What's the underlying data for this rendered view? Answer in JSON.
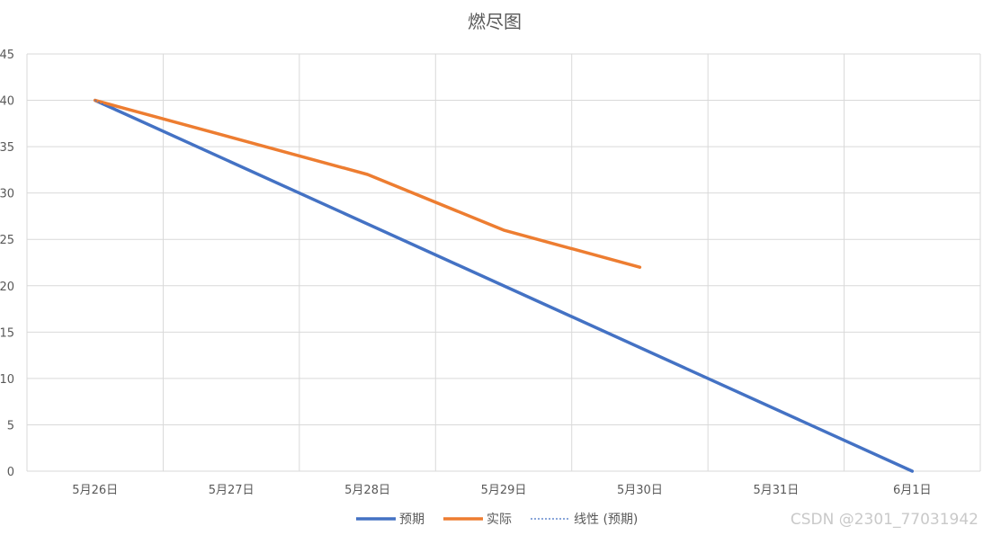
{
  "chart_data": {
    "type": "line",
    "title": "燃尽图",
    "categories": [
      "5月26日",
      "5月27日",
      "5月28日",
      "5月29日",
      "5月30日",
      "5月31日",
      "6月1日"
    ],
    "ylim": [
      0,
      45
    ],
    "yticks": [
      0,
      5,
      10,
      15,
      20,
      25,
      30,
      35,
      40,
      45
    ],
    "grid": true,
    "legend_position": "bottom",
    "series": [
      {
        "name": "预期",
        "values": [
          40,
          null,
          null,
          null,
          null,
          null,
          0
        ],
        "color": "#4472C4",
        "style": "solid"
      },
      {
        "name": "实际",
        "values": [
          40,
          null,
          32,
          26,
          22,
          null,
          null
        ],
        "color": "#ED7D31",
        "style": "solid"
      }
    ],
    "trendline": {
      "name": "线性 (预期)",
      "values": [
        40,
        null,
        null,
        null,
        null,
        null,
        0
      ],
      "color": "#4472C4",
      "style": "dotted"
    }
  },
  "watermark": "CSDN @2301_77031942"
}
